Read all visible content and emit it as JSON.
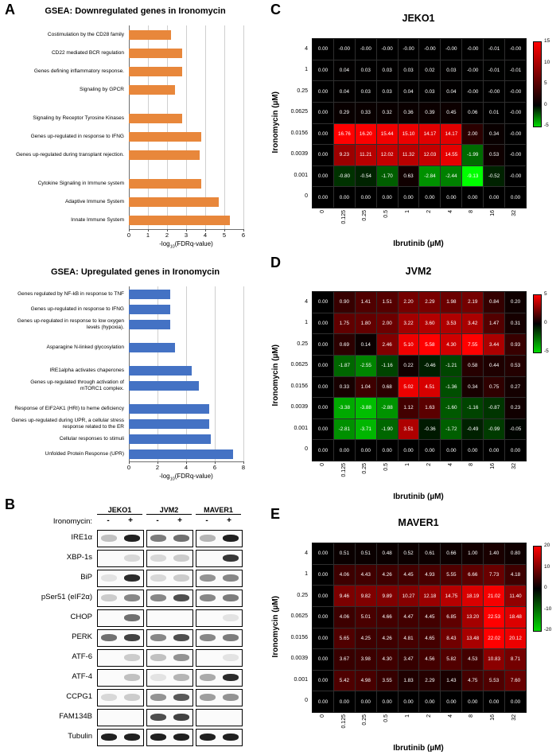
{
  "figure": {
    "panel_letters": {
      "a": "A",
      "b": "B",
      "c": "C",
      "d": "D",
      "e": "E"
    }
  },
  "chart_data": [
    {
      "type": "bar",
      "panel": "A",
      "title": "GSEA: Downregulated genes in Ironomycin",
      "bar_color": "#E8873B",
      "xlabel": {
        "pre": "-log",
        "sub": "10",
        "post": "(FDRq-value)"
      },
      "xticks": [
        0,
        1,
        2,
        3,
        4,
        5,
        6
      ],
      "xmax": 6,
      "legend": "none",
      "groups": [
        {
          "items": [
            {
              "label": "Costimulation by the CD28 family",
              "value": 2.2
            },
            {
              "label": "CD22 mediated BCR regulation",
              "value": 2.8
            },
            {
              "label": "Genes defining inflammatory response.",
              "value": 2.8
            },
            {
              "label": "Signaling by GPCR",
              "value": 2.4
            }
          ]
        },
        {
          "items": [
            {
              "label": "Signaling by Receptor Tyrosine Kinases",
              "value": 2.8
            },
            {
              "label": "Genes up-regulated in response to IFNG",
              "value": 3.8
            },
            {
              "label": "Genes up-regulated during transplant rejection.",
              "value": 3.7
            }
          ]
        },
        {
          "items": [
            {
              "label": "Cytokine Signaling in Immune system",
              "value": 3.8
            },
            {
              "label": "Adaptive Immune System",
              "value": 4.7
            },
            {
              "label": "Innate Immune System",
              "value": 5.3
            }
          ]
        }
      ]
    },
    {
      "type": "bar",
      "panel": "A",
      "title": "GSEA: Upregulated genes in Ironomycin",
      "bar_color": "#4472C4",
      "xlabel": {
        "pre": "-log",
        "sub": "10",
        "post": "(FDRq-value)"
      },
      "xticks": [
        0,
        2,
        4,
        6,
        8
      ],
      "xmax": 8,
      "legend": "none",
      "groups": [
        {
          "items": [
            {
              "label": "Genes regulated by NF-kB in response to TNF",
              "value": 2.9
            },
            {
              "label": "Genes up-regulated in response to IFNG",
              "value": 2.9
            },
            {
              "label": "Genes up-regulated in response to low oxygen levels (hypoxia).",
              "value": 2.9
            }
          ]
        },
        {
          "items": [
            {
              "label": "Asparagine N-linked glycosylation",
              "value": 3.2
            }
          ]
        },
        {
          "items": [
            {
              "label": "IRE1alpha activates chaperones",
              "value": 4.4
            },
            {
              "label": "Genes up-regulated through activation of mTORC1 complex.",
              "value": 4.9
            }
          ]
        },
        {
          "items": [
            {
              "label": "Response of EIF2AK1 (HRI) to heme deficiency",
              "value": 5.6
            },
            {
              "label": "Genes up-regulated during UPR, a cellular stress response related to the ER",
              "value": 5.6
            },
            {
              "label": "Cellular responses to stimuli",
              "value": 5.7
            },
            {
              "label": "Unfolded Protein Response (UPR)",
              "value": 7.3
            }
          ]
        }
      ]
    },
    {
      "type": "heatmap",
      "panel": "C",
      "title": "JEKO1",
      "ylabel": "Ironomycin (µM)",
      "xlabel": "Ibrutinib (µM)",
      "y_labels": [
        "4",
        "1",
        "0.25",
        "0.0625",
        "0.0156",
        "0.0039",
        "0.001",
        "0"
      ],
      "x_labels": [
        "0",
        "0.125",
        "0.25",
        "0.5",
        "1",
        "2",
        "4",
        "8",
        "16",
        "32"
      ],
      "colorbar_ticks": [
        "15",
        "10",
        "5",
        "0",
        "-5"
      ],
      "values": [
        [
          "0.00",
          "-0.00",
          "-0.00",
          "-0.00",
          "-0.00",
          "-0.00",
          "-0.00",
          "-0.00",
          "-0.01",
          "-0.00"
        ],
        [
          "0.00",
          "0.04",
          "0.03",
          "0.03",
          "0.03",
          "0.02",
          "0.03",
          "-0.00",
          "-0.01",
          "-0.01"
        ],
        [
          "0.00",
          "0.04",
          "0.03",
          "0.03",
          "0.04",
          "0.03",
          "0.04",
          "-0.00",
          "-0.00",
          "-0.00"
        ],
        [
          "0.00",
          "0.29",
          "0.33",
          "0.32",
          "0.36",
          "0.39",
          "0.45",
          "0.06",
          "0.01",
          "-0.00"
        ],
        [
          "0.00",
          "16.76",
          "16.20",
          "15.44",
          "15.10",
          "14.17",
          "14.17",
          "2.00",
          "0.34",
          "-0.00"
        ],
        [
          "0.00",
          "9.23",
          "11.21",
          "12.02",
          "11.32",
          "12.03",
          "14.55",
          "-1.99",
          "0.53",
          "-0.00"
        ],
        [
          "0.00",
          "-0.80",
          "-0.54",
          "-1.70",
          "0.63",
          "-2.84",
          "-2.44",
          "-9.13",
          "-0.52",
          "-0.00"
        ],
        [
          "0.00",
          "0.00",
          "0.00",
          "0.00",
          "0.00",
          "0.00",
          "0.00",
          "0.00",
          "0.00",
          "0.00"
        ]
      ]
    },
    {
      "type": "heatmap",
      "panel": "D",
      "title": "JVM2",
      "ylabel": "Ironomycin (µM)",
      "xlabel": "Ibrutinib (µM)",
      "y_labels": [
        "4",
        "1",
        "0.25",
        "0.0625",
        "0.0156",
        "0.0039",
        "0.001",
        "0"
      ],
      "x_labels": [
        "0",
        "0.125",
        "0.25",
        "0.5",
        "1",
        "2",
        "4",
        "8",
        "16",
        "32"
      ],
      "colorbar_ticks": [
        "5",
        "0",
        "-5"
      ],
      "values": [
        [
          "0.00",
          "0.90",
          "1.41",
          "1.51",
          "2.20",
          "2.29",
          "1.98",
          "2.19",
          "0.84",
          "0.20"
        ],
        [
          "0.00",
          "1.75",
          "1.80",
          "2.00",
          "3.22",
          "3.60",
          "3.53",
          "3.42",
          "1.47",
          "0.31"
        ],
        [
          "0.00",
          "0.69",
          "0.14",
          "2.46",
          "5.10",
          "5.58",
          "4.30",
          "7.55",
          "3.44",
          "0.93"
        ],
        [
          "0.00",
          "-1.87",
          "-2.55",
          "-1.16",
          "0.22",
          "-0.46",
          "-1.21",
          "0.58",
          "0.44",
          "0.53"
        ],
        [
          "0.00",
          "0.33",
          "1.04",
          "0.68",
          "5.02",
          "4.51",
          "-1.36",
          "0.34",
          "0.75",
          "0.27"
        ],
        [
          "0.00",
          "-3.38",
          "-3.88",
          "-2.88",
          "1.12",
          "1.63",
          "-1.60",
          "-1.16",
          "-0.87",
          "0.23"
        ],
        [
          "0.00",
          "-2.81",
          "-3.71",
          "-1.90",
          "3.51",
          "-0.36",
          "-1.72",
          "-0.49",
          "-0.99",
          "-0.05"
        ],
        [
          "0.00",
          "0.00",
          "0.00",
          "0.00",
          "0.00",
          "0.00",
          "0.00",
          "0.00",
          "0.00",
          "0.00"
        ]
      ]
    },
    {
      "type": "heatmap",
      "panel": "E",
      "title": "MAVER1",
      "ylabel": "Ironomycin (µM)",
      "xlabel": "Ibrutinib (µM)",
      "y_labels": [
        "4",
        "1",
        "0.25",
        "0.0625",
        "0.0156",
        "0.0039",
        "0.001",
        "0"
      ],
      "x_labels": [
        "0",
        "0.125",
        "0.25",
        "0.5",
        "1",
        "2",
        "4",
        "8",
        "16",
        "32"
      ],
      "colorbar_ticks": [
        "20",
        "10",
        "0",
        "-10",
        "-20"
      ],
      "values": [
        [
          "0.00",
          "0.51",
          "0.51",
          "0.48",
          "0.52",
          "0.61",
          "0.66",
          "1.00",
          "1.40",
          "0.80"
        ],
        [
          "0.00",
          "4.06",
          "4.43",
          "4.26",
          "4.45",
          "4.93",
          "5.55",
          "6.66",
          "7.73",
          "4.18"
        ],
        [
          "0.00",
          "9.46",
          "9.82",
          "9.89",
          "10.27",
          "12.18",
          "14.75",
          "18.19",
          "21.02",
          "11.40"
        ],
        [
          "0.00",
          "4.06",
          "5.01",
          "4.66",
          "4.47",
          "4.45",
          "6.85",
          "13.20",
          "22.53",
          "18.48"
        ],
        [
          "0.00",
          "5.65",
          "4.25",
          "4.26",
          "4.81",
          "4.65",
          "8.43",
          "13.48",
          "22.02",
          "20.12"
        ],
        [
          "0.00",
          "3.67",
          "3.98",
          "4.30",
          "3.47",
          "4.56",
          "5.82",
          "4.53",
          "10.83",
          "8.71"
        ],
        [
          "0.00",
          "5.42",
          "4.98",
          "3.55",
          "1.83",
          "2.29",
          "1.43",
          "4.75",
          "5.53",
          "7.60"
        ],
        [
          "0.00",
          "0.00",
          "0.00",
          "0.00",
          "0.00",
          "0.00",
          "0.00",
          "0.00",
          "0.00",
          "0.00"
        ]
      ]
    }
  ],
  "blots": {
    "cell_lines": [
      "JEKO1",
      "JVM2",
      "MAVER1"
    ],
    "treatment_label": "Ironomycin:",
    "lane_symbols": [
      "-",
      "+"
    ],
    "rows": [
      {
        "protein": "IRE1α",
        "bands": [
          [
            0.25,
            0.95
          ],
          [
            0.55,
            0.6
          ],
          [
            0.3,
            0.95
          ]
        ]
      },
      {
        "protein": "XBP-1s",
        "bands": [
          [
            0.05,
            0.15
          ],
          [
            0.15,
            0.2
          ],
          [
            0.05,
            0.85
          ]
        ]
      },
      {
        "protein": "BiP",
        "bands": [
          [
            0.1,
            0.9
          ],
          [
            0.15,
            0.2
          ],
          [
            0.45,
            0.5
          ]
        ]
      },
      {
        "protein": "pSer51 (eIF2α)",
        "bands": [
          [
            0.2,
            0.5
          ],
          [
            0.5,
            0.75
          ],
          [
            0.5,
            0.55
          ]
        ]
      },
      {
        "protein": "CHOP",
        "bands": [
          [
            0.05,
            0.6
          ],
          [
            0.05,
            0.05
          ],
          [
            0.05,
            0.1
          ]
        ]
      },
      {
        "protein": "PERK",
        "bands": [
          [
            0.6,
            0.8
          ],
          [
            0.5,
            0.75
          ],
          [
            0.5,
            0.55
          ]
        ]
      },
      {
        "protein": "ATF-6",
        "bands": [
          [
            0.05,
            0.2
          ],
          [
            0.25,
            0.45
          ],
          [
            0.05,
            0.1
          ]
        ]
      },
      {
        "protein": "ATF-4",
        "bands": [
          [
            0.05,
            0.25
          ],
          [
            0.1,
            0.3
          ],
          [
            0.35,
            0.9
          ]
        ]
      },
      {
        "protein": "CCPG1",
        "bands": [
          [
            0.15,
            0.2
          ],
          [
            0.45,
            0.7
          ],
          [
            0.4,
            0.45
          ]
        ]
      },
      {
        "protein": "FAM134B",
        "bands": [
          [
            0.05,
            0.05
          ],
          [
            0.75,
            0.8
          ],
          [
            0.05,
            0.05
          ]
        ]
      },
      {
        "protein": "Tubulin",
        "bands": [
          [
            0.95,
            0.95
          ],
          [
            0.95,
            0.95
          ],
          [
            0.95,
            0.95
          ]
        ]
      }
    ]
  }
}
